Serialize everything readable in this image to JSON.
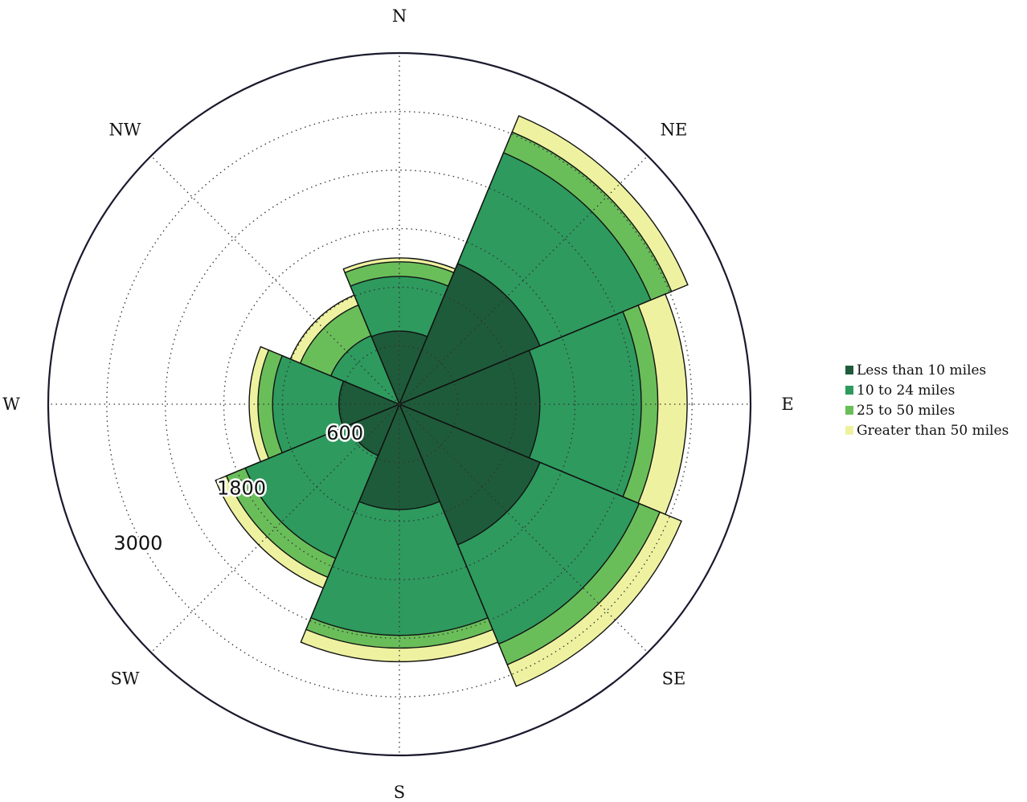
{
  "chart_data": {
    "type": "windrose",
    "directions": [
      "N",
      "NE",
      "E",
      "SE",
      "S",
      "SW",
      "W",
      "NW"
    ],
    "radial_ticks": [
      "600",
      "1800",
      "3000"
    ],
    "radial_max": 3600,
    "series": [
      {
        "name": "Less than 10 miles",
        "color": "#1e5b3a",
        "values": [
          750,
          1560,
          1440,
          1560,
          1080,
          570,
          620,
          0
        ]
      },
      {
        "name": "10 to 24 miles",
        "color": "#2e9a5e",
        "values": [
          1310,
          2790,
          2480,
          2660,
          2370,
          1710,
          1300,
          760
        ]
      },
      {
        "name": "25 to 50 miles",
        "color": "#6abe5a",
        "values": [
          1460,
          3020,
          2650,
          2890,
          2500,
          1920,
          1450,
          1100
        ]
      },
      {
        "name": "Greater than 50 miles",
        "color": "#eef2a0",
        "values": [
          1500,
          3200,
          2950,
          3130,
          2640,
          2040,
          1540,
          1210
        ]
      }
    ]
  }
}
